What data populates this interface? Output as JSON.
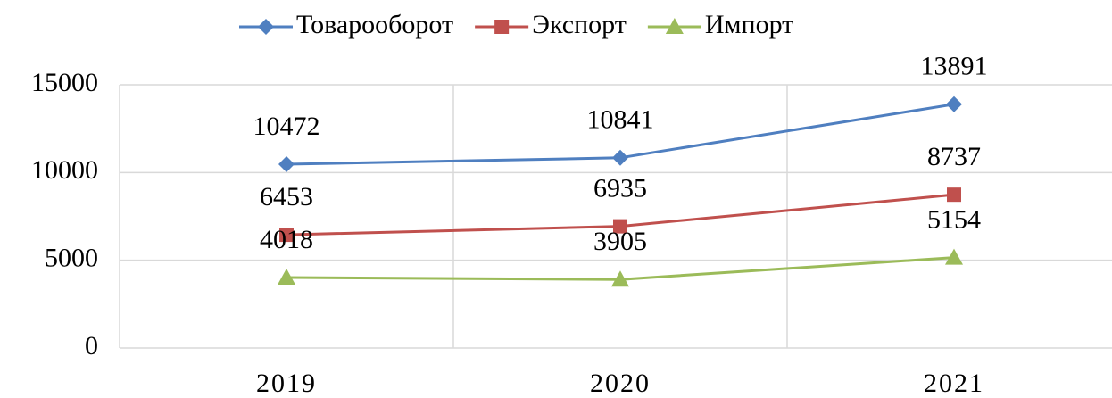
{
  "chart_data": {
    "type": "line",
    "categories": [
      "2019",
      "2020",
      "2021"
    ],
    "series": [
      {
        "name": "Товарооборот",
        "color": "#4f7fc0",
        "marker": "diamond",
        "values": [
          10472,
          10841,
          13891
        ]
      },
      {
        "name": "Экспорт",
        "color": "#c0504d",
        "marker": "square",
        "values": [
          6453,
          6935,
          8737
        ]
      },
      {
        "name": "Импорт",
        "color": "#9bbb59",
        "marker": "triangle",
        "values": [
          4018,
          3905,
          5154
        ]
      }
    ],
    "ylim": [
      0,
      15000
    ],
    "yticks": [
      0,
      5000,
      10000,
      15000
    ],
    "grid": true,
    "legend": "top"
  }
}
